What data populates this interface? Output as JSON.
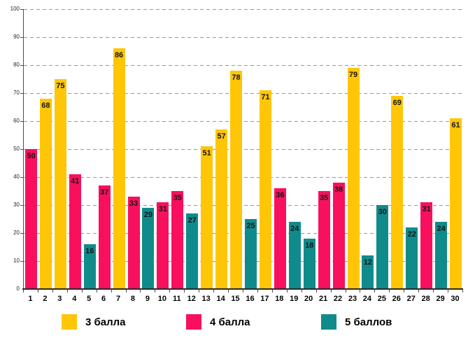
{
  "chart_data": {
    "type": "bar",
    "title": "",
    "xlabel": "",
    "ylabel": "",
    "ylim": [
      0,
      100
    ],
    "y_tick_step": 10,
    "grid": "horizontal-dashed",
    "legend_position": "bottom",
    "categories": [
      "1",
      "2",
      "3",
      "4",
      "5",
      "6",
      "7",
      "8",
      "9",
      "10",
      "11",
      "12",
      "13",
      "14",
      "15",
      "16",
      "17",
      "18",
      "19",
      "20",
      "21",
      "22",
      "23",
      "24",
      "25",
      "26",
      "27",
      "28",
      "29",
      "30"
    ],
    "values": [
      50,
      68,
      75,
      41,
      16,
      37,
      86,
      33,
      29,
      31,
      35,
      27,
      51,
      57,
      78,
      25,
      71,
      36,
      24,
      18,
      35,
      38,
      79,
      12,
      30,
      69,
      22,
      31,
      24,
      61
    ],
    "bar_series": [
      "4 балла",
      "3 балла",
      "3 балла",
      "4 балла",
      "5 баллов",
      "4 балла",
      "3 балла",
      "4 балла",
      "5 баллов",
      "4 балла",
      "4 балла",
      "5 баллов",
      "3 балла",
      "3 балла",
      "3 балла",
      "5 баллов",
      "3 балла",
      "4 балла",
      "5 баллов",
      "5 баллов",
      "4 балла",
      "4 балла",
      "3 балла",
      "5 баллов",
      "5 баллов",
      "3 балла",
      "5 баллов",
      "4 балла",
      "5 баллов",
      "3 балла"
    ],
    "series": [
      {
        "name": "3 балла",
        "color": "#FFC608"
      },
      {
        "name": "4 балла",
        "color": "#F8105E"
      },
      {
        "name": "5 баллов",
        "color": "#108B8B"
      }
    ],
    "y_tick_labels": [
      "0",
      "10",
      "20",
      "30",
      "40",
      "50",
      "60",
      "70",
      "80",
      "90",
      "100"
    ]
  },
  "legend": {
    "items": [
      {
        "label": "3 балла",
        "color": "#FFC608",
        "x": 88
      },
      {
        "label": "4 балла",
        "color": "#F8105E",
        "x": 266
      },
      {
        "label": "5 баллов",
        "color": "#108B8B",
        "x": 459
      }
    ]
  },
  "colors": {
    "grid": "#979797",
    "axis": "#2a2a2a",
    "value_label": "#141414",
    "background": "#ffffff"
  }
}
